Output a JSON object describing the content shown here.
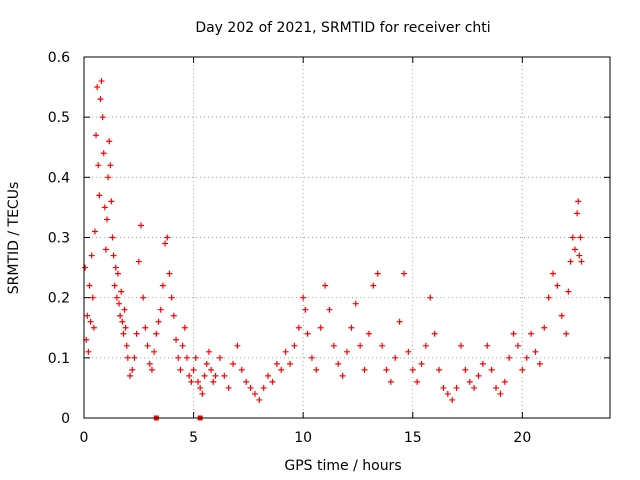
{
  "chart_data": {
    "type": "scatter",
    "title": "Day 202 of 2021, SRMTID for receiver chti",
    "xlabel": "GPS time / hours",
    "ylabel": "SRMTID / TECUs",
    "xlim": [
      0,
      24
    ],
    "ylim": [
      0,
      0.6
    ],
    "x_ticks": [
      "0",
      "5",
      "10",
      "15",
      "20"
    ],
    "y_ticks": [
      "0",
      "0.1",
      "0.2",
      "0.3",
      "0.4",
      "0.5",
      "0.6"
    ],
    "grid": true,
    "marker": "plus",
    "series": [
      {
        "name": "SRMTID",
        "color": "#ff0000",
        "points": [
          [
            0.05,
            0.25
          ],
          [
            0.1,
            0.13
          ],
          [
            0.15,
            0.17
          ],
          [
            0.2,
            0.11
          ],
          [
            0.25,
            0.22
          ],
          [
            0.3,
            0.16
          ],
          [
            0.35,
            0.27
          ],
          [
            0.4,
            0.2
          ],
          [
            0.45,
            0.15
          ],
          [
            0.5,
            0.31
          ],
          [
            0.55,
            0.47
          ],
          [
            0.6,
            0.55
          ],
          [
            0.65,
            0.42
          ],
          [
            0.7,
            0.37
          ],
          [
            0.75,
            0.53
          ],
          [
            0.8,
            0.56
          ],
          [
            0.85,
            0.5
          ],
          [
            0.9,
            0.44
          ],
          [
            0.95,
            0.35
          ],
          [
            1.0,
            0.28
          ],
          [
            1.05,
            0.33
          ],
          [
            1.1,
            0.4
          ],
          [
            1.15,
            0.46
          ],
          [
            1.2,
            0.42
          ],
          [
            1.25,
            0.36
          ],
          [
            1.3,
            0.3
          ],
          [
            1.35,
            0.27
          ],
          [
            1.4,
            0.22
          ],
          [
            1.45,
            0.25
          ],
          [
            1.5,
            0.2
          ],
          [
            1.55,
            0.24
          ],
          [
            1.6,
            0.19
          ],
          [
            1.65,
            0.17
          ],
          [
            1.7,
            0.21
          ],
          [
            1.75,
            0.16
          ],
          [
            1.8,
            0.14
          ],
          [
            1.85,
            0.18
          ],
          [
            1.9,
            0.15
          ],
          [
            1.95,
            0.12
          ],
          [
            2.0,
            0.1
          ],
          [
            2.1,
            0.07
          ],
          [
            2.2,
            0.08
          ],
          [
            2.3,
            0.1
          ],
          [
            2.4,
            0.14
          ],
          [
            2.5,
            0.26
          ],
          [
            2.6,
            0.32
          ],
          [
            2.7,
            0.2
          ],
          [
            2.8,
            0.15
          ],
          [
            2.9,
            0.12
          ],
          [
            3.0,
            0.09
          ],
          [
            3.1,
            0.08
          ],
          [
            3.2,
            0.11
          ],
          [
            3.3,
            0.14
          ],
          [
            3.4,
            0.16
          ],
          [
            3.5,
            0.18
          ],
          [
            3.6,
            0.22
          ],
          [
            3.7,
            0.29
          ],
          [
            3.8,
            0.3
          ],
          [
            3.9,
            0.24
          ],
          [
            4.0,
            0.2
          ],
          [
            4.1,
            0.17
          ],
          [
            4.2,
            0.13
          ],
          [
            4.3,
            0.1
          ],
          [
            4.4,
            0.08
          ],
          [
            4.5,
            0.12
          ],
          [
            4.6,
            0.15
          ],
          [
            4.7,
            0.1
          ],
          [
            4.8,
            0.07
          ],
          [
            4.9,
            0.06
          ],
          [
            5.0,
            0.08
          ],
          [
            5.1,
            0.1
          ],
          [
            5.2,
            0.06
          ],
          [
            5.3,
            0.05
          ],
          [
            5.4,
            0.04
          ],
          [
            5.5,
            0.07
          ],
          [
            5.6,
            0.09
          ],
          [
            5.7,
            0.11
          ],
          [
            5.8,
            0.08
          ],
          [
            5.9,
            0.06
          ],
          [
            6.0,
            0.07
          ],
          [
            6.2,
            0.1
          ],
          [
            6.4,
            0.07
          ],
          [
            6.6,
            0.05
          ],
          [
            6.8,
            0.09
          ],
          [
            7.0,
            0.12
          ],
          [
            7.2,
            0.08
          ],
          [
            7.4,
            0.06
          ],
          [
            7.6,
            0.05
          ],
          [
            7.8,
            0.04
          ],
          [
            8.0,
            0.03
          ],
          [
            8.2,
            0.05
          ],
          [
            8.4,
            0.07
          ],
          [
            8.6,
            0.06
          ],
          [
            8.8,
            0.09
          ],
          [
            9.0,
            0.08
          ],
          [
            9.2,
            0.11
          ],
          [
            9.4,
            0.09
          ],
          [
            9.6,
            0.12
          ],
          [
            9.8,
            0.15
          ],
          [
            10.0,
            0.2
          ],
          [
            10.1,
            0.18
          ],
          [
            10.2,
            0.14
          ],
          [
            10.4,
            0.1
          ],
          [
            10.6,
            0.08
          ],
          [
            10.8,
            0.15
          ],
          [
            11.0,
            0.22
          ],
          [
            11.2,
            0.18
          ],
          [
            11.4,
            0.12
          ],
          [
            11.6,
            0.09
          ],
          [
            11.8,
            0.07
          ],
          [
            12.0,
            0.11
          ],
          [
            12.2,
            0.15
          ],
          [
            12.4,
            0.19
          ],
          [
            12.6,
            0.12
          ],
          [
            12.8,
            0.08
          ],
          [
            13.0,
            0.14
          ],
          [
            13.2,
            0.22
          ],
          [
            13.4,
            0.24
          ],
          [
            13.6,
            0.12
          ],
          [
            13.8,
            0.08
          ],
          [
            14.0,
            0.06
          ],
          [
            14.2,
            0.1
          ],
          [
            14.4,
            0.16
          ],
          [
            14.6,
            0.24
          ],
          [
            14.8,
            0.11
          ],
          [
            15.0,
            0.08
          ],
          [
            15.2,
            0.06
          ],
          [
            15.4,
            0.09
          ],
          [
            15.6,
            0.12
          ],
          [
            15.8,
            0.2
          ],
          [
            16.0,
            0.14
          ],
          [
            16.2,
            0.08
          ],
          [
            16.4,
            0.05
          ],
          [
            16.6,
            0.04
          ],
          [
            16.8,
            0.03
          ],
          [
            17.0,
            0.05
          ],
          [
            17.2,
            0.12
          ],
          [
            17.4,
            0.08
          ],
          [
            17.6,
            0.06
          ],
          [
            17.8,
            0.05
          ],
          [
            18.0,
            0.07
          ],
          [
            18.2,
            0.09
          ],
          [
            18.4,
            0.12
          ],
          [
            18.6,
            0.08
          ],
          [
            18.8,
            0.05
          ],
          [
            19.0,
            0.04
          ],
          [
            19.2,
            0.06
          ],
          [
            19.4,
            0.1
          ],
          [
            19.6,
            0.14
          ],
          [
            19.8,
            0.12
          ],
          [
            20.0,
            0.08
          ],
          [
            20.2,
            0.1
          ],
          [
            20.4,
            0.14
          ],
          [
            20.6,
            0.11
          ],
          [
            20.8,
            0.09
          ],
          [
            21.0,
            0.15
          ],
          [
            21.2,
            0.2
          ],
          [
            21.4,
            0.24
          ],
          [
            21.6,
            0.22
          ],
          [
            21.8,
            0.17
          ],
          [
            22.0,
            0.14
          ],
          [
            22.1,
            0.21
          ],
          [
            22.2,
            0.26
          ],
          [
            22.3,
            0.3
          ],
          [
            22.4,
            0.28
          ],
          [
            22.5,
            0.34
          ],
          [
            22.55,
            0.36
          ],
          [
            22.6,
            0.27
          ],
          [
            22.65,
            0.3
          ],
          [
            22.7,
            0.26
          ]
        ]
      }
    ],
    "isolated_points": [
      [
        3.3,
        0.0
      ],
      [
        5.3,
        0.0
      ]
    ]
  }
}
